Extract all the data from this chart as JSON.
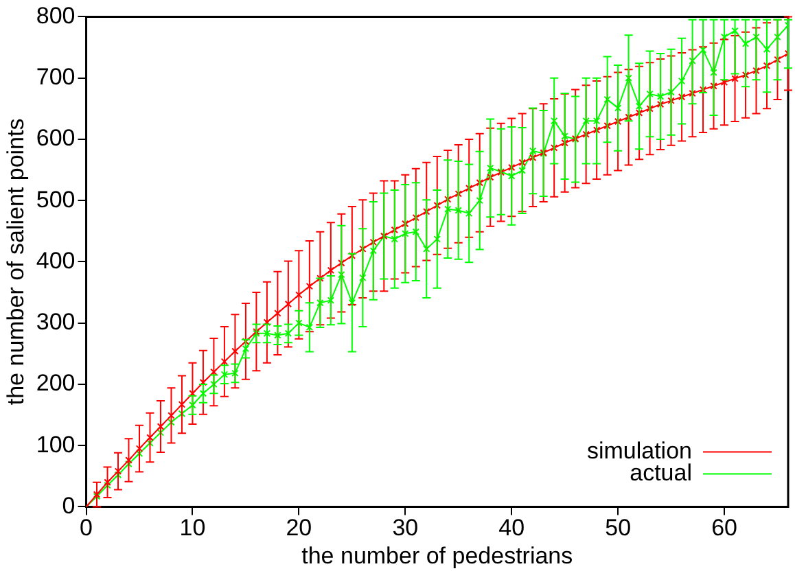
{
  "chart_data": {
    "type": "line",
    "xlabel": "the number of pedestrians",
    "ylabel": "the number of salient points",
    "xlim": [
      0,
      66
    ],
    "xticks": [
      0,
      10,
      20,
      30,
      40,
      50,
      60
    ],
    "ylim": [
      0,
      800
    ],
    "yticks": [
      0,
      100,
      200,
      300,
      400,
      500,
      600,
      700,
      800
    ],
    "grid": false,
    "legend": "bottom right",
    "marker": "cross",
    "line_style": "solid",
    "x": [
      0,
      1,
      2,
      3,
      4,
      5,
      6,
      7,
      8,
      9,
      10,
      11,
      12,
      13,
      14,
      15,
      16,
      17,
      18,
      19,
      20,
      21,
      22,
      23,
      24,
      25,
      26,
      27,
      28,
      29,
      30,
      31,
      32,
      33,
      34,
      35,
      36,
      37,
      38,
      39,
      40,
      41,
      42,
      43,
      44,
      45,
      46,
      47,
      48,
      49,
      50,
      51,
      52,
      53,
      54,
      55,
      56,
      57,
      58,
      59,
      60,
      61,
      62,
      63,
      64,
      65,
      66
    ],
    "series": [
      {
        "name": "simulation",
        "color": "#ff0000",
        "values": [
          0,
          20,
          40,
          58,
          76,
          95,
          113,
          131,
          149,
          167,
          185,
          203,
          220,
          237,
          254,
          270,
          286,
          301,
          316,
          331,
          346,
          360,
          373,
          386,
          398,
          410,
          421,
          432,
          442,
          452,
          462,
          472,
          482,
          492,
          502,
          511,
          520,
          529,
          538,
          546,
          554,
          562,
          570,
          578,
          586,
          594,
          601,
          608,
          615,
          622,
          629,
          636,
          643,
          650,
          657,
          663,
          669,
          675,
          681,
          687,
          693,
          699,
          705,
          712,
          720,
          730,
          740
        ],
        "errors": [
          null,
          20,
          25,
          30,
          35,
          38,
          40,
          42,
          45,
          47,
          50,
          52,
          55,
          57,
          60,
          62,
          64,
          66,
          68,
          70,
          72,
          74,
          76,
          78,
          80,
          80,
          80,
          80,
          90,
          80,
          80,
          80,
          80,
          80,
          80,
          80,
          80,
          80,
          80,
          80,
          80,
          80,
          80,
          80,
          80,
          80,
          80,
          80,
          80,
          80,
          80,
          78,
          76,
          75,
          74,
          73,
          72,
          71,
          70,
          70,
          70,
          70,
          70,
          70,
          70,
          65,
          60
        ]
      },
      {
        "name": "actual",
        "color": "#00ff00",
        "values": [
          0,
          17,
          35,
          52,
          70,
          87,
          104,
          121,
          138,
          152,
          166,
          185,
          200,
          216,
          218,
          258,
          283,
          283,
          280,
          283,
          300,
          293,
          333,
          337,
          379,
          333,
          374,
          418,
          442,
          437,
          446,
          449,
          421,
          437,
          486,
          484,
          479,
          500,
          553,
          547,
          540,
          549,
          581,
          577,
          630,
          605,
          600,
          630,
          630,
          665,
          651,
          700,
          654,
          674,
          670,
          677,
          695,
          728,
          746,
          709,
          767,
          777,
          756,
          767,
          747,
          767,
          786
        ],
        "errors": [
          null,
          null,
          null,
          null,
          null,
          null,
          null,
          null,
          null,
          null,
          15,
          15,
          15,
          15,
          15,
          15,
          15,
          15,
          15,
          15,
          20,
          40,
          40,
          40,
          80,
          80,
          80,
          80,
          70,
          80,
          80,
          80,
          80,
          80,
          80,
          80,
          80,
          80,
          80,
          70,
          80,
          70,
          70,
          70,
          70,
          70,
          70,
          70,
          70,
          70,
          70,
          70,
          70,
          70,
          70,
          70,
          70,
          [
            658,
            795
          ],
          [
            676,
            795
          ],
          [
            639,
            795
          ],
          [
            697,
            795
          ],
          [
            707,
            795
          ],
          [
            686,
            795
          ],
          [
            697,
            795
          ],
          [
            677,
            795
          ],
          [
            697,
            795
          ],
          [
            716,
            795
          ]
        ]
      }
    ]
  }
}
